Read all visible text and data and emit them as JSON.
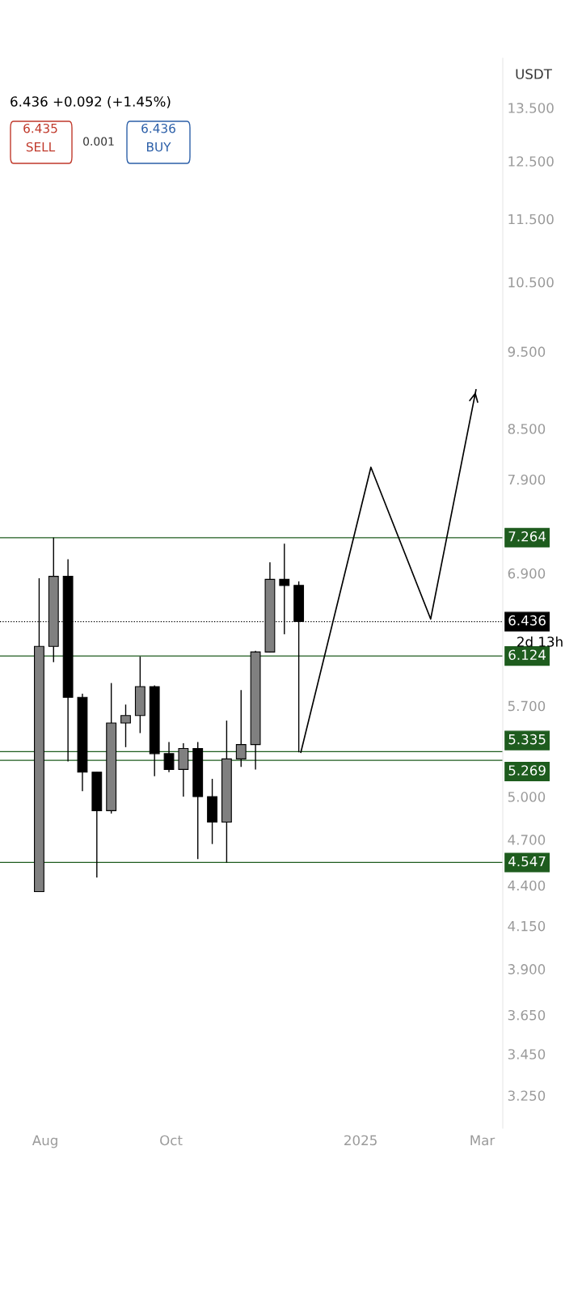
{
  "chart_data": {
    "type": "candlestick",
    "x": [
      "2024-07-29",
      "2024-08-05",
      "2024-08-12",
      "2024-08-19",
      "2024-08-26",
      "2024-09-02",
      "2024-09-09",
      "2024-09-16",
      "2024-09-23",
      "2024-09-30",
      "2024-10-07",
      "2024-10-14",
      "2024-10-21",
      "2024-10-28",
      "2024-11-04",
      "2024-11-11",
      "2024-11-18",
      "2024-11-25",
      "2024-12-02"
    ],
    "ohlc": [
      [
        4.36,
        6.85,
        4.36,
        6.21
      ],
      [
        6.21,
        7.264,
        6.07,
        6.87
      ],
      [
        6.87,
        7.04,
        5.26,
        5.77
      ],
      [
        5.77,
        5.8,
        5.04,
        5.18
      ],
      [
        5.18,
        5.18,
        4.45,
        4.9
      ],
      [
        4.9,
        5.89,
        4.88,
        5.56
      ],
      [
        5.56,
        5.71,
        5.37,
        5.62
      ],
      [
        5.62,
        6.12,
        5.48,
        5.86
      ],
      [
        5.86,
        5.87,
        5.15,
        5.32
      ],
      [
        5.32,
        5.41,
        5.18,
        5.2
      ],
      [
        5.2,
        5.4,
        5.0,
        5.36
      ],
      [
        5.36,
        5.41,
        4.57,
        5.0
      ],
      [
        5.0,
        5.13,
        4.67,
        4.82
      ],
      [
        4.82,
        5.58,
        4.547,
        5.28
      ],
      [
        5.28,
        5.83,
        5.22,
        5.39
      ],
      [
        5.39,
        6.17,
        5.2,
        6.16
      ],
      [
        6.16,
        7.01,
        6.16,
        6.84
      ],
      [
        6.84,
        7.2,
        6.32,
        6.78
      ],
      [
        6.78,
        6.82,
        5.33,
        6.436
      ]
    ],
    "colors": [
      "#808080",
      "#808080",
      "#000000",
      "#000000",
      "#000000",
      "#808080",
      "#808080",
      "#808080",
      "#000000",
      "#000000",
      "#808080",
      "#000000",
      "#000000",
      "#808080",
      "#808080",
      "#808080",
      "#808080",
      "#000000",
      "#000000"
    ],
    "series": [
      {
        "type": "line",
        "x": [
          "2024-12-03",
          "2025-01-06",
          "2025-02-04",
          "2025-02-26"
        ],
        "values": [
          5.33,
          8.04,
          6.46,
          8.99
        ],
        "color": "#000000"
      }
    ],
    "log": true,
    "ylim": [
      3.1,
      14.5
    ],
    "yticks": [
      {
        "value": 13.5,
        "label": "13.500"
      },
      {
        "value": 12.5,
        "label": "12.500"
      },
      {
        "value": 11.5,
        "label": "11.500"
      },
      {
        "value": 10.5,
        "label": "10.500"
      },
      {
        "value": 9.5,
        "label": "9.500"
      },
      {
        "value": 8.5,
        "label": "8.500"
      },
      {
        "value": 7.9,
        "label": "7.900"
      },
      {
        "value": 6.9,
        "label": "6.900"
      },
      {
        "value": 5.7,
        "label": "5.700"
      },
      {
        "value": 5.0,
        "label": "5.000"
      },
      {
        "value": 4.7,
        "label": "4.700"
      },
      {
        "value": 4.4,
        "label": "4.400"
      },
      {
        "value": 4.15,
        "label": "4.150"
      },
      {
        "value": 3.9,
        "label": "3.900"
      },
      {
        "value": 3.65,
        "label": "3.650"
      },
      {
        "value": 3.45,
        "label": "3.450"
      },
      {
        "value": 3.25,
        "label": "3.250"
      }
    ],
    "xlim": [
      "2024-07-10",
      "2025-03-11"
    ],
    "xticks": [
      {
        "value": "2024-08-01",
        "label": "Aug"
      },
      {
        "value": "2024-10-01",
        "label": "Oct"
      },
      {
        "value": "2025-01-01",
        "label": "2025"
      },
      {
        "value": "2025-03-01",
        "label": "Mar"
      }
    ],
    "ref_lines": [
      {
        "axis": "y",
        "value": 7.264,
        "label": "7.264",
        "color": "#1e5c1e"
      },
      {
        "axis": "y",
        "value": 6.436,
        "label": "6.436",
        "color": "#000000",
        "line_style": "dotted"
      },
      {
        "axis": "y",
        "value": 6.124,
        "label": "6.124",
        "color": "#1e5c1e"
      },
      {
        "axis": "y",
        "value": 5.335,
        "label": "5.335",
        "color": "#1e5c1e"
      },
      {
        "axis": "y",
        "value": 5.269,
        "label": "5.269",
        "color": "#1e5c1e"
      },
      {
        "axis": "y",
        "value": 4.547,
        "label": "4.547",
        "color": "#1e5c1e"
      }
    ],
    "annotations": [
      "6.436 +0.092 (+1.45%)",
      "6.435",
      "SELL",
      "0.001",
      "6.436",
      "BUY",
      "USDT",
      "2d 13h"
    ],
    "grid": false
  }
}
